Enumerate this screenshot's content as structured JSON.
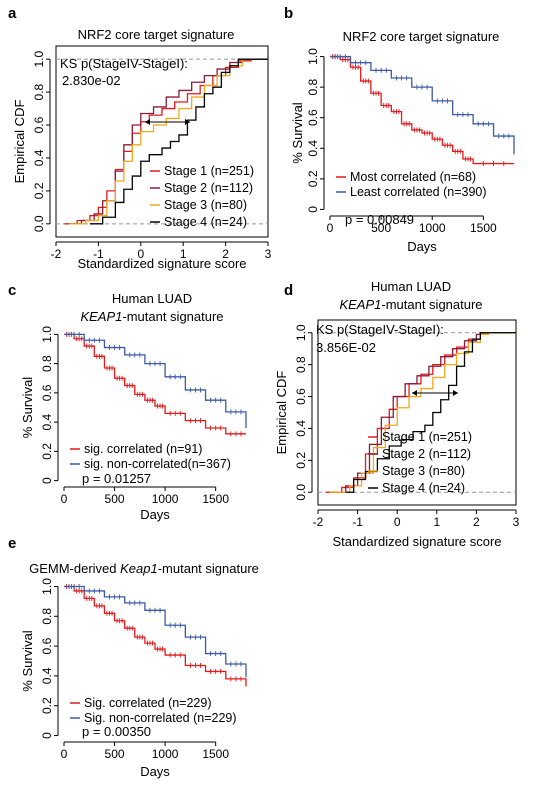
{
  "panels": {
    "a": {
      "label": "a",
      "title": "NRF2 core target signature"
    },
    "b": {
      "label": "b",
      "title": "NRF2 core target signature"
    },
    "c": {
      "label": "c",
      "title_line1": "Human LUAD",
      "title_line2_italic": "KEAP1",
      "title_line2_rest": "-mutant signature"
    },
    "d": {
      "label": "d",
      "title_line1": "Human LUAD",
      "title_line2_italic": "KEAP1",
      "title_line2_rest": "-mutant signature"
    },
    "e": {
      "label": "e",
      "title_prefix": "GEMM-derived ",
      "title_italic": "Keap1",
      "title_rest": "-mutant signature"
    }
  },
  "colors": {
    "stage1": "#e41a1c",
    "stage2": "#8b1a3a",
    "stage3": "#f0a81c",
    "stage4": "#000000",
    "red": "#e41a1c",
    "blue": "#3b5ba9"
  },
  "chart_data": [
    {
      "id": "a",
      "type": "line",
      "title": "NRF2 core target signature",
      "xlabel": "Standardized signature score",
      "ylabel": "Empirical CDF",
      "xlim": [
        -2,
        3
      ],
      "ylim": [
        0,
        1
      ],
      "xticks": [
        "-2",
        "-1",
        "0",
        "1",
        "2",
        "3"
      ],
      "yticks": [
        "0.0",
        "0.2",
        "0.4",
        "0.6",
        "0.8",
        "1.0"
      ],
      "annotation_ks": "KS p(StageIV-StageI):",
      "annotation_value": "2.830e-02",
      "legend_position": "bottom-right",
      "series": [
        {
          "name": "Stage 1 (n=251)",
          "color": "#e41a1c",
          "points": [
            [
              -1.8,
              0
            ],
            [
              -1.5,
              0.02
            ],
            [
              -1.2,
              0.05
            ],
            [
              -1,
              0.1
            ],
            [
              -0.8,
              0.2
            ],
            [
              -0.6,
              0.33
            ],
            [
              -0.4,
              0.44
            ],
            [
              -0.2,
              0.55
            ],
            [
              0,
              0.62
            ],
            [
              0.2,
              0.66
            ],
            [
              0.5,
              0.7
            ],
            [
              0.8,
              0.74
            ],
            [
              1.1,
              0.79
            ],
            [
              1.4,
              0.84
            ],
            [
              1.7,
              0.9
            ],
            [
              2,
              0.95
            ],
            [
              2.3,
              0.99
            ],
            [
              2.6,
              1
            ],
            [
              3,
              1
            ]
          ]
        },
        {
          "name": "Stage 2 (n=112)",
          "color": "#8b1a3a",
          "points": [
            [
              -1.7,
              0
            ],
            [
              -1.4,
              0.02
            ],
            [
              -1.1,
              0.06
            ],
            [
              -0.9,
              0.14
            ],
            [
              -0.6,
              0.32
            ],
            [
              -0.4,
              0.48
            ],
            [
              -0.2,
              0.6
            ],
            [
              0,
              0.67
            ],
            [
              0.3,
              0.71
            ],
            [
              0.6,
              0.77
            ],
            [
              0.9,
              0.81
            ],
            [
              1.2,
              0.86
            ],
            [
              1.5,
              0.9
            ],
            [
              1.8,
              0.94
            ],
            [
              2.1,
              0.98
            ],
            [
              2.4,
              1
            ],
            [
              3,
              1
            ]
          ]
        },
        {
          "name": "Stage 3 (n=80)",
          "color": "#f0a81c",
          "points": [
            [
              -1.7,
              0
            ],
            [
              -1.3,
              0.02
            ],
            [
              -1,
              0.05
            ],
            [
              -0.8,
              0.14
            ],
            [
              -0.6,
              0.26
            ],
            [
              -0.4,
              0.38
            ],
            [
              -0.2,
              0.48
            ],
            [
              0,
              0.56
            ],
            [
              0.3,
              0.6
            ],
            [
              0.6,
              0.64
            ],
            [
              0.9,
              0.7
            ],
            [
              1.2,
              0.77
            ],
            [
              1.5,
              0.84
            ],
            [
              1.8,
              0.9
            ],
            [
              2.1,
              0.96
            ],
            [
              2.4,
              1
            ],
            [
              3,
              1
            ]
          ]
        },
        {
          "name": "Stage 4 (n=24)",
          "color": "#000000",
          "points": [
            [
              -1.2,
              0
            ],
            [
              -0.9,
              0.04
            ],
            [
              -0.6,
              0.13
            ],
            [
              -0.4,
              0.21
            ],
            [
              -0.2,
              0.29
            ],
            [
              0,
              0.38
            ],
            [
              0.2,
              0.42
            ],
            [
              0.5,
              0.46
            ],
            [
              0.7,
              0.5
            ],
            [
              0.9,
              0.54
            ],
            [
              1.1,
              0.63
            ],
            [
              1.3,
              0.71
            ],
            [
              1.5,
              0.79
            ],
            [
              1.7,
              0.83
            ],
            [
              1.9,
              0.92
            ],
            [
              2.1,
              0.96
            ],
            [
              2.3,
              1
            ],
            [
              3,
              1
            ]
          ]
        }
      ]
    },
    {
      "id": "b",
      "type": "line",
      "title": "NRF2 core target signature",
      "xlabel": "Days",
      "ylabel": "% Survival",
      "xlim": [
        0,
        1800
      ],
      "ylim": [
        0,
        1
      ],
      "xticks": [
        "0",
        "500",
        "1000",
        "1500"
      ],
      "yticks": [
        "0",
        "0.2",
        "0.4",
        "0.6",
        "0.8",
        "1.0"
      ],
      "legend_position": "bottom-left",
      "p_label": "p = 0.00849",
      "series": [
        {
          "name": "Most correlated (n=68)",
          "color": "#e41a1c",
          "points": [
            [
              0,
              1
            ],
            [
              100,
              0.98
            ],
            [
              200,
              0.93
            ],
            [
              300,
              0.84
            ],
            [
              400,
              0.76
            ],
            [
              500,
              0.68
            ],
            [
              600,
              0.64
            ],
            [
              700,
              0.56
            ],
            [
              800,
              0.52
            ],
            [
              900,
              0.5
            ],
            [
              1000,
              0.46
            ],
            [
              1100,
              0.42
            ],
            [
              1200,
              0.38
            ],
            [
              1300,
              0.33
            ],
            [
              1400,
              0.3
            ],
            [
              1800,
              0.3
            ]
          ]
        },
        {
          "name": "Least correlated (n=390)",
          "color": "#3b5ba9",
          "points": [
            [
              0,
              1
            ],
            [
              200,
              0.96
            ],
            [
              400,
              0.91
            ],
            [
              600,
              0.86
            ],
            [
              800,
              0.8
            ],
            [
              1000,
              0.71
            ],
            [
              1200,
              0.62
            ],
            [
              1400,
              0.56
            ],
            [
              1600,
              0.48
            ],
            [
              1800,
              0.36
            ]
          ]
        }
      ]
    },
    {
      "id": "c",
      "type": "line",
      "title": "Human LUAD KEAP1-mutant signature",
      "xlabel": "Days",
      "ylabel": "% Survival",
      "xlim": [
        0,
        1800
      ],
      "ylim": [
        0,
        1
      ],
      "xticks": [
        "0",
        "500",
        "1000",
        "1500"
      ],
      "yticks": [
        "0",
        "0.2",
        "0.4",
        "0.6",
        "0.8",
        "1.0"
      ],
      "legend_position": "bottom-left",
      "p_label": "p = 0.01257",
      "series": [
        {
          "name": "sig. correlated (n=91)",
          "color": "#e41a1c",
          "points": [
            [
              0,
              1
            ],
            [
              100,
              0.97
            ],
            [
              200,
              0.92
            ],
            [
              300,
              0.85
            ],
            [
              400,
              0.77
            ],
            [
              500,
              0.7
            ],
            [
              600,
              0.65
            ],
            [
              700,
              0.59
            ],
            [
              800,
              0.55
            ],
            [
              900,
              0.51
            ],
            [
              1000,
              0.46
            ],
            [
              1200,
              0.41
            ],
            [
              1400,
              0.36
            ],
            [
              1600,
              0.32
            ],
            [
              1800,
              0.32
            ]
          ]
        },
        {
          "name": "sig. non-correlated(n=367)",
          "color": "#3b5ba9",
          "points": [
            [
              0,
              1
            ],
            [
              200,
              0.96
            ],
            [
              400,
              0.91
            ],
            [
              600,
              0.86
            ],
            [
              800,
              0.8
            ],
            [
              1000,
              0.71
            ],
            [
              1200,
              0.62
            ],
            [
              1400,
              0.55
            ],
            [
              1600,
              0.47
            ],
            [
              1800,
              0.36
            ]
          ]
        }
      ]
    },
    {
      "id": "d",
      "type": "line",
      "title": "Human LUAD KEAP1-mutant signature",
      "xlabel": "Standardized signature score",
      "ylabel": "Empirical CDF",
      "xlim": [
        -2,
        3
      ],
      "ylim": [
        0,
        1
      ],
      "xticks": [
        "-2",
        "-1",
        "0",
        "1",
        "2",
        "3"
      ],
      "yticks": [
        "0.0",
        "0.2",
        "0.4",
        "0.6",
        "0.8",
        "1.0"
      ],
      "annotation_ks": "KS p(StageIV-StageI):",
      "annotation_value": "3.856E-02",
      "legend_position": "bottom-right",
      "series": [
        {
          "name": "Stage 1 (n=251)",
          "color": "#e41a1c",
          "points": [
            [
              -1.8,
              0
            ],
            [
              -1.4,
              0.03
            ],
            [
              -1.1,
              0.09
            ],
            [
              -0.8,
              0.24
            ],
            [
              -0.5,
              0.4
            ],
            [
              -0.2,
              0.52
            ],
            [
              0,
              0.6
            ],
            [
              0.3,
              0.68
            ],
            [
              0.6,
              0.74
            ],
            [
              0.9,
              0.8
            ],
            [
              1.2,
              0.86
            ],
            [
              1.5,
              0.91
            ],
            [
              1.8,
              0.96
            ],
            [
              2.1,
              1
            ],
            [
              3,
              1
            ]
          ]
        },
        {
          "name": "Stage 2 (n=112)",
          "color": "#8b1a3a",
          "points": [
            [
              -1.7,
              0
            ],
            [
              -1.3,
              0.04
            ],
            [
              -1,
              0.12
            ],
            [
              -0.7,
              0.3
            ],
            [
              -0.4,
              0.47
            ],
            [
              -0.1,
              0.6
            ],
            [
              0.2,
              0.68
            ],
            [
              0.5,
              0.73
            ],
            [
              0.8,
              0.79
            ],
            [
              1.1,
              0.85
            ],
            [
              1.4,
              0.9
            ],
            [
              1.7,
              0.95
            ],
            [
              2,
              0.99
            ],
            [
              2.3,
              1
            ],
            [
              3,
              1
            ]
          ]
        },
        {
          "name": "Stage 3 (n=80)",
          "color": "#f0a81c",
          "points": [
            [
              -1.7,
              0
            ],
            [
              -1.2,
              0.04
            ],
            [
              -0.9,
              0.12
            ],
            [
              -0.6,
              0.28
            ],
            [
              -0.3,
              0.42
            ],
            [
              0,
              0.53
            ],
            [
              0.3,
              0.6
            ],
            [
              0.6,
              0.65
            ],
            [
              0.9,
              0.72
            ],
            [
              1.2,
              0.8
            ],
            [
              1.5,
              0.87
            ],
            [
              1.8,
              0.94
            ],
            [
              2.1,
              0.99
            ],
            [
              2.3,
              1
            ],
            [
              3,
              1
            ]
          ]
        },
        {
          "name": "Stage 4 (n=24)",
          "color": "#000000",
          "points": [
            [
              -1.3,
              0
            ],
            [
              -1.1,
              0.08
            ],
            [
              -0.8,
              0.13
            ],
            [
              -0.5,
              0.21
            ],
            [
              -0.2,
              0.29
            ],
            [
              0.1,
              0.33
            ],
            [
              0.4,
              0.38
            ],
            [
              0.7,
              0.42
            ],
            [
              0.9,
              0.5
            ],
            [
              1.1,
              0.58
            ],
            [
              1.3,
              0.67
            ],
            [
              1.5,
              0.79
            ],
            [
              1.7,
              0.88
            ],
            [
              1.9,
              0.96
            ],
            [
              2.1,
              1
            ],
            [
              3,
              1
            ]
          ]
        }
      ]
    },
    {
      "id": "e",
      "type": "line",
      "title": "GEMM-derived Keap1-mutant signature",
      "xlabel": "Days",
      "ylabel": "% Survival",
      "xlim": [
        0,
        1800
      ],
      "ylim": [
        0,
        1
      ],
      "xticks": [
        "0",
        "500",
        "1000",
        "1500"
      ],
      "yticks": [
        "0",
        "0.2",
        "0.4",
        "0.6",
        "0.8",
        "1.0"
      ],
      "legend_position": "bottom-left",
      "p_label": "p = 0.00350",
      "series": [
        {
          "name": "Sig. correlated (n=229)",
          "color": "#e41a1c",
          "points": [
            [
              0,
              1
            ],
            [
              100,
              0.97
            ],
            [
              200,
              0.92
            ],
            [
              300,
              0.87
            ],
            [
              400,
              0.82
            ],
            [
              500,
              0.77
            ],
            [
              600,
              0.72
            ],
            [
              700,
              0.66
            ],
            [
              800,
              0.62
            ],
            [
              900,
              0.58
            ],
            [
              1000,
              0.54
            ],
            [
              1200,
              0.47
            ],
            [
              1400,
              0.43
            ],
            [
              1600,
              0.38
            ],
            [
              1800,
              0.33
            ]
          ]
        },
        {
          "name": "Sig. non-correlated (n=229)",
          "color": "#3b5ba9",
          "points": [
            [
              0,
              1
            ],
            [
              200,
              0.97
            ],
            [
              400,
              0.93
            ],
            [
              600,
              0.89
            ],
            [
              800,
              0.84
            ],
            [
              1000,
              0.74
            ],
            [
              1200,
              0.66
            ],
            [
              1400,
              0.55
            ],
            [
              1600,
              0.48
            ],
            [
              1800,
              0.39
            ]
          ]
        }
      ]
    }
  ]
}
